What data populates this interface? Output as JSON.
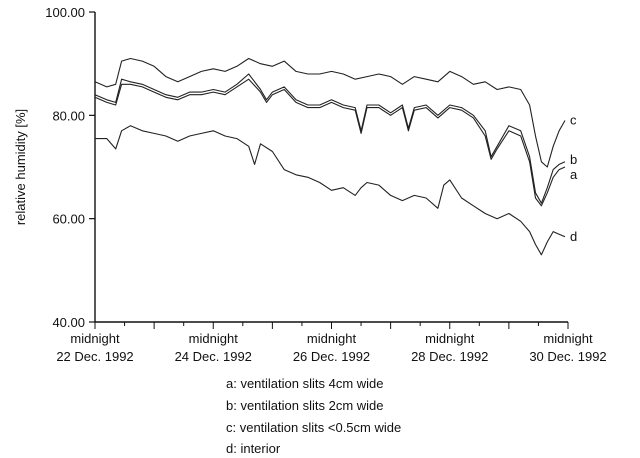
{
  "chart_data": {
    "type": "line",
    "ylabel": "relative humidity [%]",
    "ylim": [
      40,
      100
    ],
    "y_ticks": [
      "40.00",
      "60.00",
      "80.00",
      "100.00"
    ],
    "x_tick_labels": [
      {
        "x": 0,
        "line1": "midnight",
        "line2": "22 Dec. 1992"
      },
      {
        "x": 2,
        "line1": "midnight",
        "line2": "24 Dec. 1992"
      },
      {
        "x": 4,
        "line1": "midnight",
        "line2": "26 Dec. 1992"
      },
      {
        "x": 6,
        "line1": "midnight",
        "line2": "28 Dec. 1992"
      },
      {
        "x": 8,
        "line1": "midnight",
        "line2": "30 Dec. 1992"
      }
    ],
    "xlim": [
      0,
      8.0
    ],
    "x_unit": "days since midnight 22 Dec. 1992",
    "grid": false,
    "series": [
      {
        "name": "c",
        "color": "#222222",
        "x": [
          0,
          0.2,
          0.35,
          0.45,
          0.6,
          0.8,
          1.0,
          1.2,
          1.4,
          1.6,
          1.8,
          2.0,
          2.2,
          2.4,
          2.6,
          2.8,
          3.0,
          3.2,
          3.4,
          3.6,
          3.8,
          4.0,
          4.2,
          4.4,
          4.6,
          4.8,
          5.0,
          5.2,
          5.4,
          5.6,
          5.8,
          6.0,
          6.2,
          6.4,
          6.6,
          6.8,
          7.0,
          7.2,
          7.35,
          7.45,
          7.55,
          7.65,
          7.75,
          7.85,
          7.95
        ],
        "y": [
          86.5,
          85.5,
          86.0,
          90.5,
          91.0,
          90.5,
          89.5,
          87.5,
          86.5,
          87.5,
          88.5,
          89.0,
          88.5,
          89.5,
          91.0,
          90.0,
          89.5,
          90.5,
          88.5,
          88.0,
          88.0,
          88.5,
          88.0,
          87.0,
          87.5,
          88.0,
          87.5,
          86.0,
          87.5,
          87.0,
          86.5,
          88.5,
          87.5,
          86.0,
          86.5,
          85.0,
          85.5,
          85.0,
          82.0,
          76.0,
          71.0,
          70.0,
          74.0,
          77.0,
          79.0
        ]
      },
      {
        "name": "b",
        "color": "#222222",
        "x": [
          0,
          0.2,
          0.35,
          0.45,
          0.6,
          0.8,
          1.0,
          1.2,
          1.4,
          1.6,
          1.8,
          2.0,
          2.2,
          2.4,
          2.6,
          2.8,
          2.9,
          3.0,
          3.2,
          3.4,
          3.6,
          3.8,
          4.0,
          4.2,
          4.4,
          4.5,
          4.6,
          4.8,
          5.0,
          5.2,
          5.3,
          5.4,
          5.6,
          5.8,
          6.0,
          6.2,
          6.4,
          6.6,
          6.7,
          6.8,
          7.0,
          7.2,
          7.35,
          7.45,
          7.55,
          7.65,
          7.75,
          7.85,
          7.95
        ],
        "y": [
          84.0,
          83.0,
          82.5,
          87.0,
          86.5,
          86.0,
          85.0,
          84.0,
          83.5,
          84.5,
          84.5,
          85.0,
          84.5,
          86.0,
          88.0,
          85.0,
          83.0,
          84.5,
          85.5,
          83.0,
          82.0,
          82.0,
          83.0,
          82.0,
          81.5,
          77.0,
          82.0,
          82.0,
          80.5,
          82.0,
          77.5,
          81.5,
          82.0,
          80.0,
          82.0,
          81.5,
          80.0,
          77.0,
          72.0,
          74.0,
          78.0,
          77.0,
          72.0,
          65.0,
          63.0,
          66.0,
          69.5,
          70.5,
          71.0
        ]
      },
      {
        "name": "a",
        "color": "#222222",
        "x": [
          0,
          0.2,
          0.35,
          0.45,
          0.6,
          0.8,
          1.0,
          1.2,
          1.4,
          1.6,
          1.8,
          2.0,
          2.2,
          2.4,
          2.6,
          2.8,
          2.9,
          3.0,
          3.2,
          3.4,
          3.6,
          3.8,
          4.0,
          4.2,
          4.4,
          4.5,
          4.6,
          4.8,
          5.0,
          5.2,
          5.3,
          5.4,
          5.6,
          5.8,
          6.0,
          6.2,
          6.4,
          6.6,
          6.7,
          6.8,
          7.0,
          7.2,
          7.35,
          7.45,
          7.55,
          7.65,
          7.75,
          7.85,
          7.95
        ],
        "y": [
          83.5,
          82.5,
          82.0,
          86.0,
          86.0,
          85.5,
          84.5,
          83.5,
          83.0,
          84.0,
          84.0,
          84.5,
          84.0,
          85.5,
          87.0,
          84.5,
          82.5,
          84.0,
          85.0,
          82.5,
          81.5,
          81.5,
          82.5,
          81.5,
          81.0,
          76.5,
          81.5,
          81.5,
          80.0,
          81.5,
          77.0,
          81.0,
          81.5,
          79.5,
          81.5,
          81.0,
          79.5,
          76.0,
          71.5,
          73.5,
          77.0,
          76.0,
          71.0,
          64.0,
          62.5,
          65.0,
          68.0,
          69.5,
          70.0
        ]
      },
      {
        "name": "d",
        "color": "#222222",
        "x": [
          0,
          0.2,
          0.35,
          0.45,
          0.6,
          0.8,
          1.0,
          1.2,
          1.4,
          1.6,
          1.8,
          2.0,
          2.2,
          2.4,
          2.6,
          2.7,
          2.8,
          3.0,
          3.2,
          3.4,
          3.6,
          3.8,
          4.0,
          4.2,
          4.4,
          4.5,
          4.6,
          4.8,
          5.0,
          5.2,
          5.4,
          5.6,
          5.8,
          5.9,
          6.0,
          6.2,
          6.4,
          6.6,
          6.8,
          7.0,
          7.2,
          7.35,
          7.45,
          7.55,
          7.65,
          7.75,
          7.85,
          7.95
        ],
        "y": [
          75.5,
          75.5,
          73.5,
          77.0,
          78.0,
          77.0,
          76.5,
          76.0,
          75.0,
          76.0,
          76.5,
          77.0,
          76.0,
          75.5,
          74.0,
          70.5,
          74.5,
          73.0,
          69.5,
          68.5,
          68.0,
          67.0,
          65.5,
          66.0,
          64.5,
          66.0,
          67.0,
          66.5,
          64.5,
          63.5,
          64.5,
          64.0,
          62.0,
          66.5,
          67.5,
          64.0,
          62.5,
          61.0,
          60.0,
          61.0,
          59.5,
          57.5,
          55.0,
          53.0,
          55.5,
          57.5,
          57.0,
          56.5
        ]
      }
    ],
    "end_labels": [
      "c",
      "b",
      "a",
      "d"
    ]
  },
  "legend": [
    {
      "key": "a",
      "text": "a: ventilation slits 4cm wide"
    },
    {
      "key": "b",
      "text": "b: ventilation slits 2cm wide"
    },
    {
      "key": "c",
      "text": "c: ventilation slits <0.5cm wide"
    },
    {
      "key": "d",
      "text": "d: interior"
    }
  ]
}
